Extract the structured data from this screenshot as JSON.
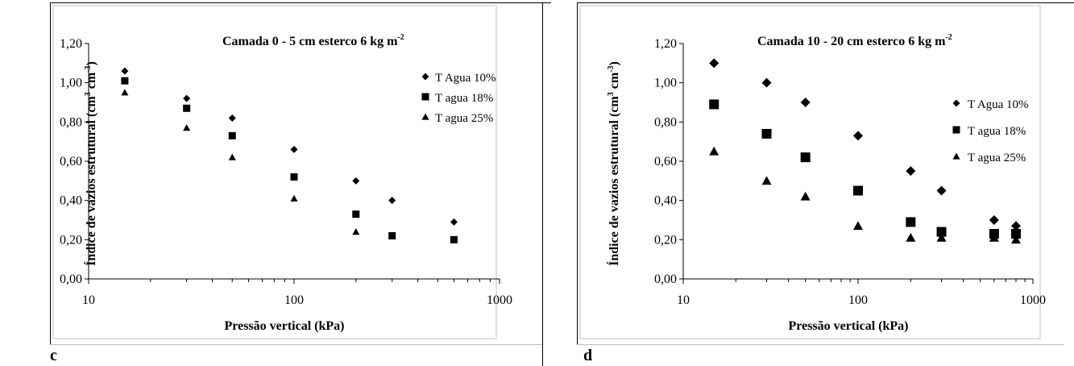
{
  "chart_data": [
    {
      "panel_label": "c",
      "type": "scatter",
      "title": "Camada 0 - 5 cm esterco 6 kg m",
      "title_sup": "-2",
      "xlabel": "Pressão vertical (kPa)",
      "ylabel_main": "Índice de vazios estrutural (cm",
      "ylabel_sup1": "3",
      "ylabel_mid": " cm",
      "ylabel_sup2": "-3",
      "ylabel_end": ")",
      "x_scale": "log",
      "xlim": [
        10,
        1000
      ],
      "ylim": [
        0,
        1.2
      ],
      "x_ticks": [
        10,
        100,
        1000
      ],
      "x_tick_labels": [
        "10",
        "100",
        "1000"
      ],
      "y_ticks": [
        0,
        0.2,
        0.4,
        0.6,
        0.8,
        1.0,
        1.2
      ],
      "y_tick_labels": [
        "0,00",
        "0,20",
        "0,40",
        "0,60",
        "0,80",
        "1,00",
        "1,20"
      ],
      "grid": false,
      "legend_position": "right",
      "series": [
        {
          "name": "T Agua 10%",
          "marker": "diamond",
          "x": [
            15,
            30,
            50,
            100,
            200,
            300,
            600
          ],
          "y": [
            1.06,
            0.92,
            0.82,
            0.66,
            0.5,
            0.4,
            0.29
          ]
        },
        {
          "name": "T agua 18%",
          "marker": "square",
          "x": [
            15,
            30,
            50,
            100,
            200,
            300,
            600
          ],
          "y": [
            1.01,
            0.87,
            0.73,
            0.52,
            0.33,
            0.22,
            0.2
          ]
        },
        {
          "name": "T agua 25%",
          "marker": "triangle",
          "x": [
            15,
            30,
            50,
            100,
            200
          ],
          "y": [
            0.95,
            0.77,
            0.62,
            0.41,
            0.24
          ]
        }
      ]
    },
    {
      "panel_label": "d",
      "type": "scatter",
      "title": "Camada 10 - 20 cm esterco 6 kg m",
      "title_sup": "-2",
      "xlabel": "Pressão vertical (kPa)",
      "ylabel_main": "Índice de vazios estrutural (cm",
      "ylabel_sup1": "3",
      "ylabel_mid": " cm",
      "ylabel_sup2": "-3",
      "ylabel_end": ")",
      "x_scale": "log",
      "xlim": [
        10,
        1000
      ],
      "ylim": [
        0,
        1.2
      ],
      "x_ticks": [
        10,
        100,
        1000
      ],
      "x_tick_labels": [
        "10",
        "100",
        "1000"
      ],
      "y_ticks": [
        0,
        0.2,
        0.4,
        0.6,
        0.8,
        1.0,
        1.2
      ],
      "y_tick_labels": [
        "0,00",
        "0,20",
        "0,40",
        "0,60",
        "0,80",
        "1,00",
        "1,20"
      ],
      "grid": false,
      "legend_position": "right",
      "series": [
        {
          "name": "T Agua 10%",
          "marker": "diamond",
          "x": [
            15,
            30,
            50,
            100,
            200,
            300,
            600,
            800
          ],
          "y": [
            1.1,
            1.0,
            0.9,
            0.73,
            0.55,
            0.45,
            0.3,
            0.27
          ]
        },
        {
          "name": "T agua 18%",
          "marker": "square",
          "x": [
            15,
            30,
            50,
            100,
            200,
            300,
            600,
            800
          ],
          "y": [
            0.89,
            0.74,
            0.62,
            0.45,
            0.29,
            0.24,
            0.23,
            0.23
          ]
        },
        {
          "name": "T agua 25%",
          "marker": "triangle",
          "x": [
            15,
            30,
            50,
            100,
            200,
            300,
            600,
            800
          ],
          "y": [
            0.65,
            0.5,
            0.42,
            0.27,
            0.21,
            0.21,
            0.21,
            0.2
          ]
        }
      ]
    }
  ]
}
